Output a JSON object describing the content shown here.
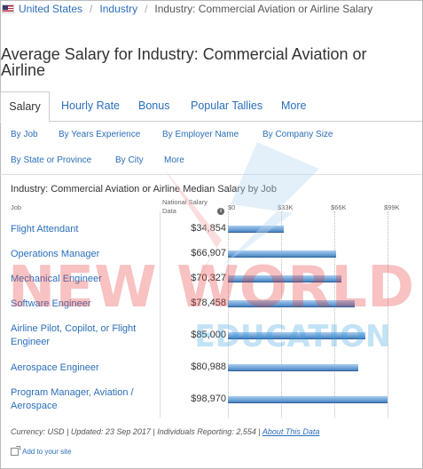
{
  "breadcrumb": {
    "country": "United States",
    "industry": "Industry",
    "current": "Industry: Commercial Aviation or Airline Salary"
  },
  "page_title": "Average Salary for Industry: Commercial Aviation or Airline",
  "tabs": [
    "Salary",
    "Hourly Rate",
    "Bonus",
    "Popular Tallies",
    "More"
  ],
  "subnav": [
    "By Job",
    "By Years Experience",
    "By Employer Name",
    "By Company Size",
    "By State or Province",
    "By City",
    "More"
  ],
  "watermark": {
    "line1": "NEW WORLD",
    "line2": "EDUCATION"
  },
  "chart_data": {
    "type": "bar",
    "orientation": "horizontal",
    "title": "Industry: Commercial Aviation or Airline Median Salary by Job",
    "col_job_label": "Job",
    "col_value_label": "National Salary Data",
    "info_icon": "info-icon",
    "xlim": [
      0,
      99000
    ],
    "ticks": [
      "$0",
      "$33K",
      "$66K",
      "$99K"
    ],
    "categories": [
      "Flight Attendant",
      "Operations Manager",
      "Mechanical Engineer",
      "Software Engineer",
      "Airline Pilot, Copilot, or Flight Engineer",
      "Aerospace Engineer",
      "Program Manager, Aviation / Aerospace"
    ],
    "values": [
      34854,
      66907,
      70327,
      78458,
      85000,
      80988,
      98970
    ],
    "value_labels": [
      "$34,854",
      "$66,907",
      "$70,327",
      "$78,458",
      "$85,000",
      "$80,988",
      "$98,970"
    ],
    "bar_color": "#4a86c5"
  },
  "footer": {
    "meta": "Currency: USD | Updated: 23 Sep 2017 | Individuals Reporting: 2,554 | ",
    "about": "About This Data",
    "add_to_site": "Add to your site"
  }
}
